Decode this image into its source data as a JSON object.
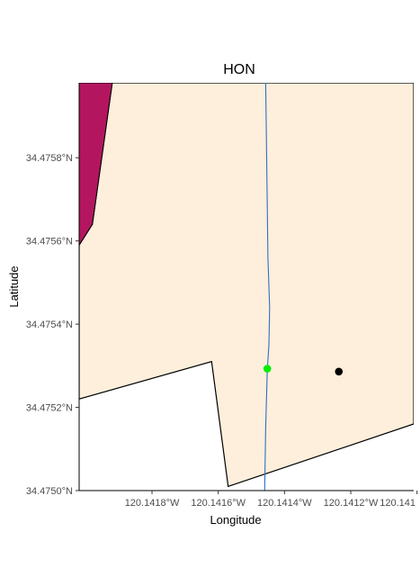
{
  "title": "HON",
  "colors": {
    "land": "#fdefdb",
    "magenta_region": "#b3165f",
    "river": "#2f6fc4",
    "green_point": "#00ee00",
    "black_point": "#000000",
    "boundary": "#000000"
  },
  "axes": {
    "xlabel": "Longitude",
    "ylabel": "Latitude",
    "x_ticks": [
      "120.1418°W",
      "120.1416°W",
      "120.1414°W",
      "120.1412°W",
      "120.141"
    ],
    "y_ticks": [
      "34.4750°N",
      "34.4752°N",
      "34.4754°N",
      "34.4756°N",
      "34.4758°N"
    ]
  },
  "chart_data": {
    "type": "map",
    "title": "HON",
    "xlabel": "Longitude",
    "ylabel": "Latitude",
    "xlim": [
      -120.14202,
      -120.14101
    ],
    "ylim": [
      34.475,
      34.47598
    ],
    "grid": false,
    "features": [
      {
        "name": "magenta region",
        "color": "#b3165f",
        "coords": [
          [
            -120.14202,
            34.47598
          ],
          [
            -120.14192,
            34.47598
          ],
          [
            -120.14198,
            34.47564
          ],
          [
            -120.14202,
            34.47559
          ]
        ]
      },
      {
        "name": "land boundary",
        "color": "#fdefdb",
        "coords": [
          [
            -120.14192,
            34.47598
          ],
          [
            -120.14101,
            34.47598
          ],
          [
            -120.14101,
            34.47516
          ],
          [
            -120.14157,
            34.47501
          ],
          [
            -120.14162,
            34.47531
          ],
          [
            -120.14202,
            34.47522
          ],
          [
            -120.14202,
            34.47559
          ],
          [
            -120.14198,
            34.47564
          ]
        ]
      }
    ],
    "river": {
      "color": "#2f6fc4",
      "coords": [
        [
          -120.141457,
          34.47598
        ],
        [
          -120.141453,
          34.47575
        ],
        [
          -120.14145,
          34.47556
        ],
        [
          -120.141445,
          34.47544
        ],
        [
          -120.141447,
          34.47535
        ],
        [
          -120.141452,
          34.47529
        ],
        [
          -120.141457,
          34.47515
        ],
        [
          -120.14146,
          34.475
        ]
      ]
    },
    "points": [
      {
        "color": "#00ee00",
        "lon": -120.141452,
        "lat": 34.475293
      },
      {
        "color": "#000000",
        "lon": -120.141236,
        "lat": 34.475286
      }
    ]
  }
}
